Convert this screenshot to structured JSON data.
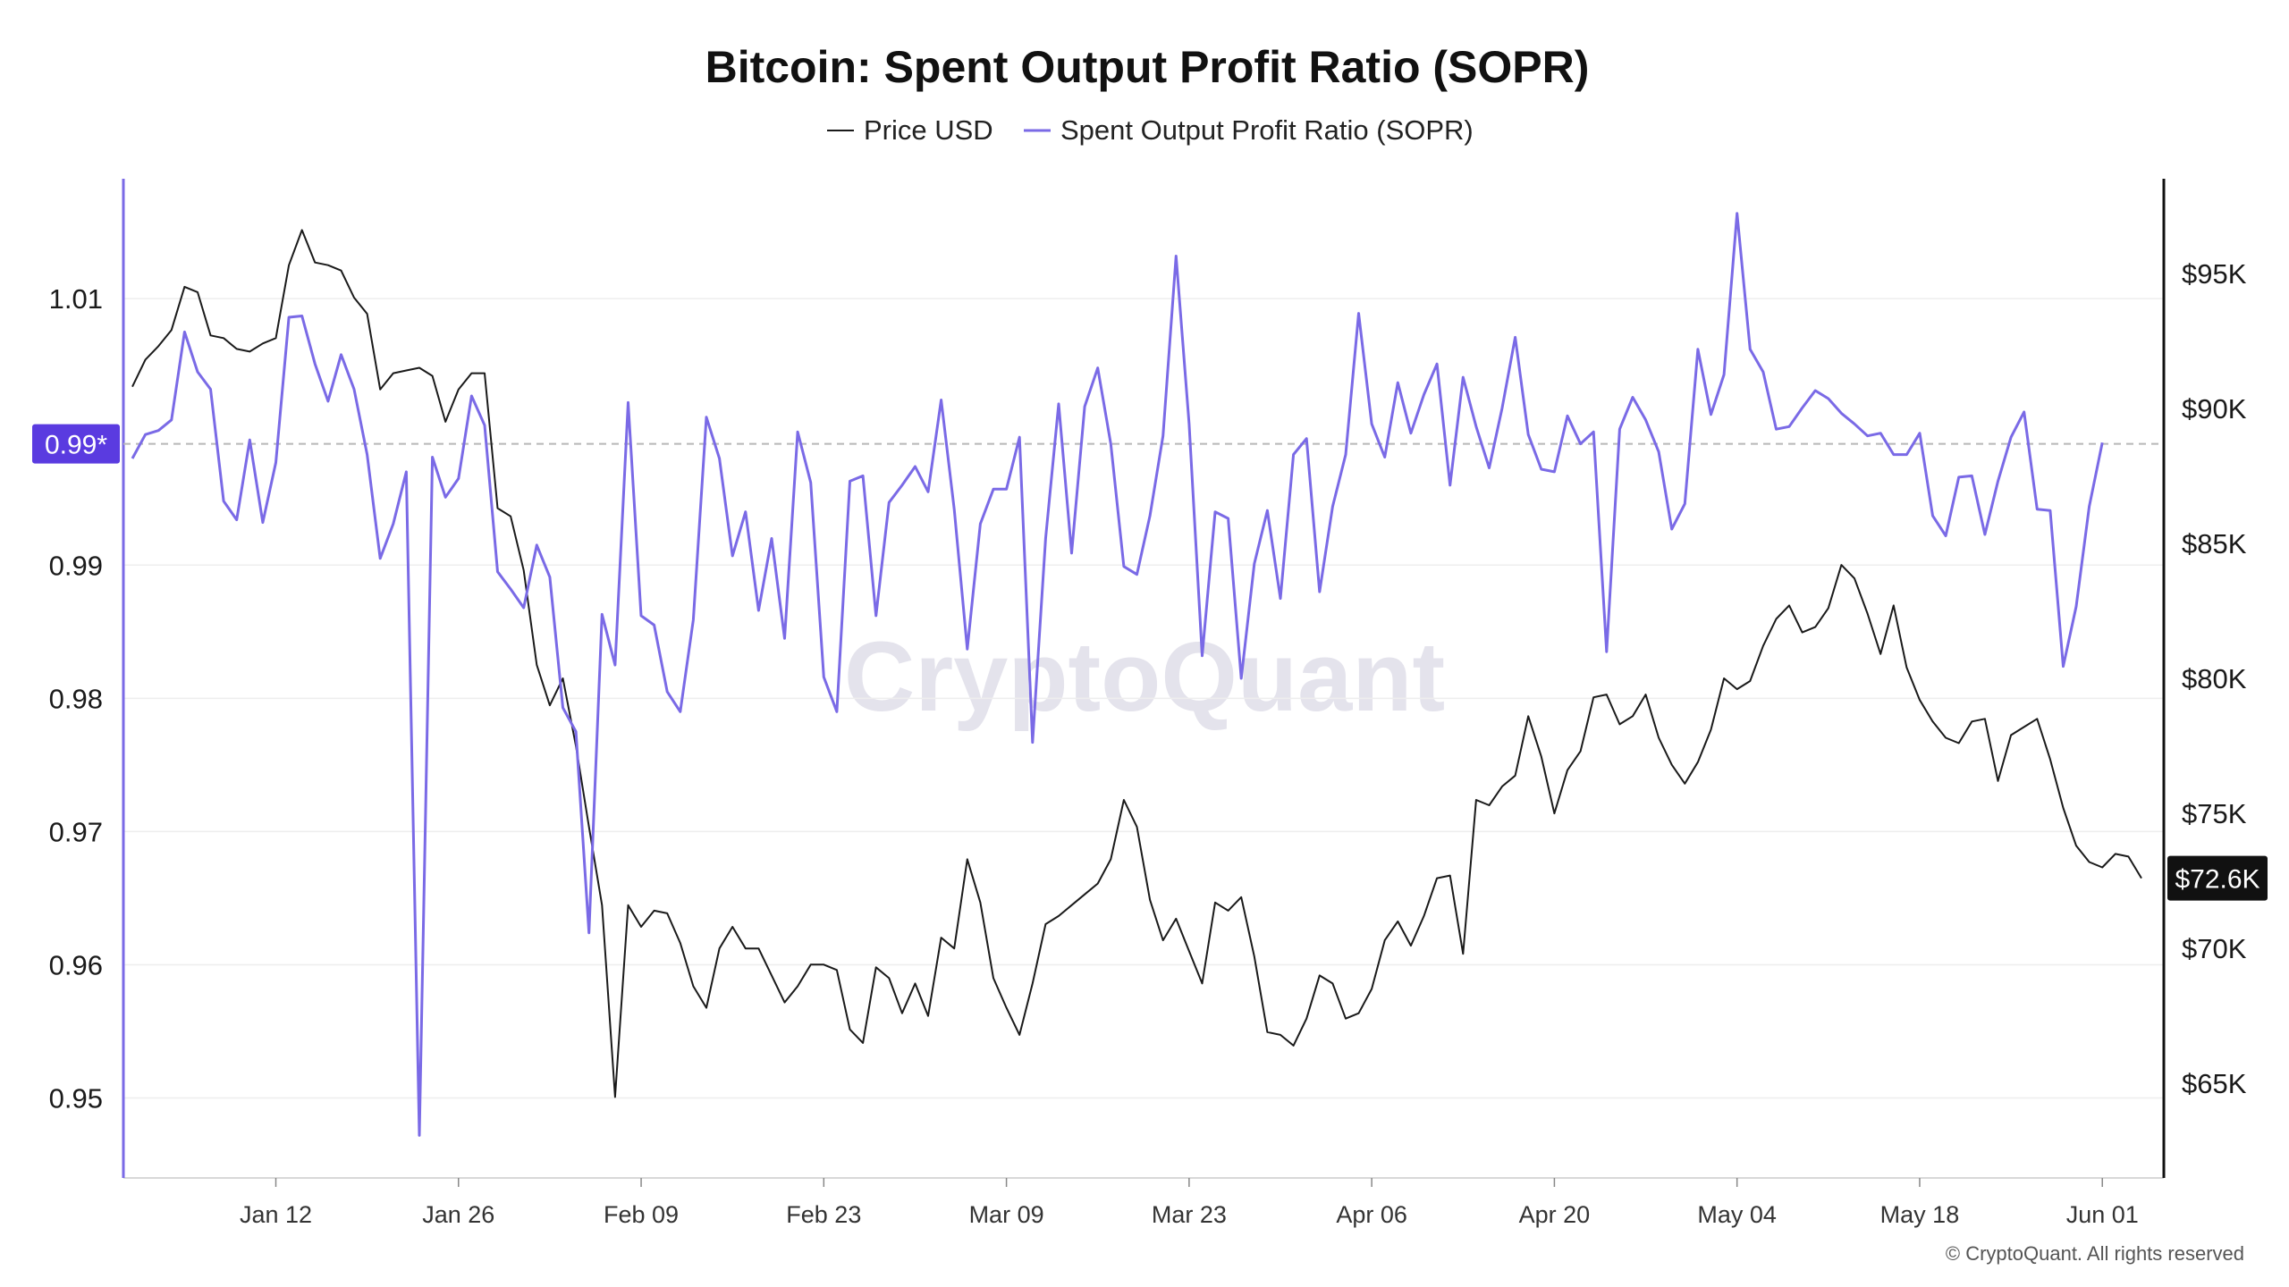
{
  "colors": {
    "sopr": "#7a6ae6",
    "price": "#1a1a1a",
    "sopr_badge": "#5a3be0",
    "price_badge": "#111111",
    "grid": "#eeeeee",
    "ref_line": "#b8b8b8"
  },
  "watermark": "CryptoQuant",
  "copyright": "© CryptoQuant. All rights reserved",
  "chart_data": {
    "type": "line",
    "title": "Bitcoin: Spent Output Profit Ratio (SOPR)",
    "xlabel": "",
    "ylabel": "",
    "legend_position": "top-center",
    "grid": true,
    "x_ticks": [
      "Jan 12",
      "Jan 26",
      "Feb 09",
      "Feb 23",
      "Mar 09",
      "Mar 23",
      "Apr 06",
      "Apr 20",
      "May 04",
      "May 18",
      "Jun 01"
    ],
    "y_left": {
      "ylim": [
        0.944,
        1.019
      ],
      "ticks": [
        "1.01",
        "0.99",
        "0.98",
        "0.97",
        "0.96",
        "0.95"
      ],
      "tick_values": [
        1.01,
        0.99,
        0.98,
        0.97,
        0.96,
        0.95
      ]
    },
    "y_right": {
      "ylim": [
        61500,
        98500
      ],
      "ticks": [
        "$95K",
        "$90K",
        "$85K",
        "$80K",
        "$75K",
        "$70K",
        "$65K"
      ],
      "tick_values": [
        95000,
        90000,
        85000,
        80000,
        75000,
        70000,
        65000
      ]
    },
    "reference_line": {
      "value": 0.9991,
      "label": "0.99*"
    },
    "last_price_label": "$72.6K",
    "series": [
      {
        "name": "Price USD",
        "axis": "right",
        "start_date": "2026-01-01",
        "values": [
          90800,
          91800,
          92300,
          92900,
          94500,
          94300,
          92700,
          92600,
          92200,
          92100,
          92400,
          92600,
          95300,
          96600,
          95400,
          95300,
          95100,
          94100,
          93500,
          90700,
          91300,
          91400,
          91500,
          91200,
          89500,
          90700,
          91300,
          91300,
          86300,
          86000,
          84000,
          80500,
          79000,
          80000,
          77500,
          74500,
          71600,
          64500,
          71600,
          70800,
          71400,
          71300,
          70200,
          68600,
          67800,
          70000,
          70800,
          70000,
          70000,
          69000,
          68000,
          68600,
          69400,
          69400,
          69200,
          67000,
          66500,
          69300,
          68900,
          67600,
          68700,
          67500,
          70400,
          70000,
          73300,
          71700,
          68900,
          67800,
          66800,
          68700,
          70900,
          71200,
          71600,
          72000,
          72400,
          73300,
          75500,
          74500,
          71800,
          70300,
          71100,
          69900,
          68700,
          71700,
          71400,
          71900,
          69700,
          66900,
          66800,
          66400,
          67400,
          69000,
          68700,
          67400,
          67600,
          68500,
          70300,
          71000,
          70100,
          71200,
          72600,
          72700,
          69800,
          75500,
          75300,
          76000,
          76400,
          78600,
          77100,
          75000,
          76600,
          77300,
          79300,
          79400,
          78300,
          78600,
          79400,
          77800,
          76800,
          76100,
          76900,
          78100,
          80000,
          79600,
          79900,
          81200,
          82200,
          82700,
          81700,
          81900,
          82600,
          84200,
          83700,
          82400,
          80900,
          82700,
          80400,
          79200,
          78400,
          77800,
          77600,
          78400,
          78500,
          76200,
          77900,
          78200,
          78500,
          77000,
          75200,
          73800,
          73200,
          73000,
          73500,
          73400,
          72600
        ]
      },
      {
        "name": "Spent Output Profit Ratio (SOPR)",
        "axis": "left",
        "start_date": "2026-01-01",
        "values": [
          0.998,
          0.9998,
          1.0001,
          1.0009,
          1.0075,
          1.0045,
          1.0032,
          0.9948,
          0.9934,
          0.9994,
          0.9932,
          0.9977,
          1.0086,
          1.0087,
          1.0051,
          1.0023,
          1.0058,
          1.0032,
          0.9983,
          0.9905,
          0.9931,
          0.997,
          0.9472,
          0.9981,
          0.9951,
          0.9965,
          1.0027,
          1.0005,
          0.9895,
          0.9882,
          0.9868,
          0.9915,
          0.9891,
          0.9793,
          0.9775,
          0.9624,
          0.9863,
          0.9825,
          1.0022,
          0.9862,
          0.9855,
          0.9805,
          0.979,
          0.9859,
          1.0011,
          0.998,
          0.9907,
          0.994,
          0.9866,
          0.992,
          0.9845,
          1.0,
          0.9962,
          0.9816,
          0.979,
          0.9963,
          0.9967,
          0.9862,
          0.9947,
          0.996,
          0.9974,
          0.9955,
          1.0024,
          0.9942,
          0.9837,
          0.9931,
          0.9957,
          0.9957,
          0.9996,
          0.9767,
          0.992,
          1.0021,
          0.9909,
          1.0019,
          1.0048,
          0.9991,
          0.9899,
          0.9893,
          0.9937,
          0.9997,
          1.0132,
          1.0006,
          0.9832,
          0.994,
          0.9935,
          0.9815,
          0.9901,
          0.9941,
          0.9875,
          0.9983,
          0.9995,
          0.988,
          0.9944,
          0.9983,
          1.0089,
          1.0006,
          0.9981,
          1.0037,
          0.9999,
          1.0028,
          1.0051,
          0.996,
          1.0041,
          1.0004,
          0.9973,
          1.0018,
          1.0071,
          0.9998,
          0.9972,
          0.997,
          1.0012,
          0.9991,
          1.0,
          0.9835,
          1.0002,
          1.0026,
          1.0009,
          0.9985,
          0.9927,
          0.9946,
          1.0062,
          1.0013,
          1.0043,
          1.0164,
          1.0062,
          1.0045,
          1.0002,
          1.0004,
          1.0018,
          1.0031,
          1.0025,
          1.0014,
          1.0006,
          0.9997,
          0.9999,
          0.9983,
          0.9983,
          0.9999,
          0.9937,
          0.9922,
          0.9966,
          0.9967,
          0.9923,
          0.9963,
          0.9996,
          1.0015,
          0.9942,
          0.9941,
          0.9824,
          0.9869,
          0.9944,
          0.9992
        ]
      }
    ]
  }
}
